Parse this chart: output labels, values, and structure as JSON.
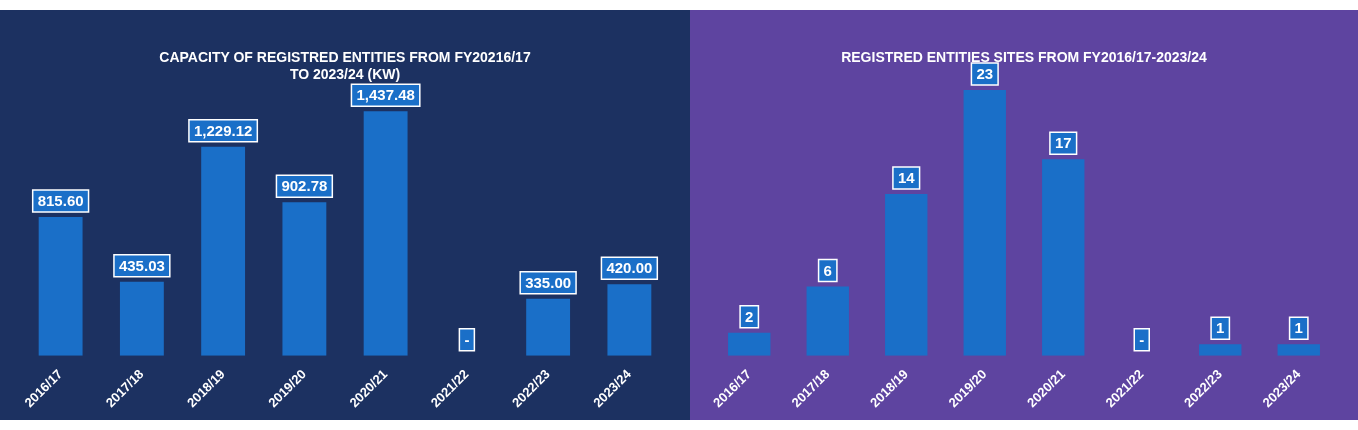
{
  "chart_data": [
    {
      "type": "bar",
      "title": "CAPACITY OF REGISTRED ENTITIES FROM FY20216/17\nTO 2023/24 (KW)",
      "categories": [
        "2016/17",
        "2017/18",
        "2018/19",
        "2019/20",
        "2020/21",
        "2021/22",
        "2022/23",
        "2023/24"
      ],
      "values": [
        815.6,
        435.03,
        1229.12,
        902.78,
        1437.48,
        0,
        335,
        420
      ],
      "value_labels": [
        "815.60",
        "435.03",
        "1,229.12",
        "902.78",
        "1,437.48",
        "-",
        "335.00",
        "420.00"
      ],
      "color": "#1a6fc8",
      "grid": false,
      "legend": false
    },
    {
      "type": "bar",
      "title": "REGISTRED ENTITIES SITES FROM FY2016/17-2023/24",
      "categories": [
        "2016/17",
        "2017/18",
        "2018/19",
        "2019/20",
        "2020/21",
        "2021/22",
        "2022/23",
        "2023/24"
      ],
      "values": [
        2,
        6,
        14,
        23,
        17,
        0,
        1,
        1
      ],
      "value_labels": [
        "2",
        "6",
        "14",
        "23",
        "17",
        "-",
        "1",
        "1"
      ],
      "color": "#1a6fc8",
      "grid": false,
      "legend": false
    }
  ]
}
